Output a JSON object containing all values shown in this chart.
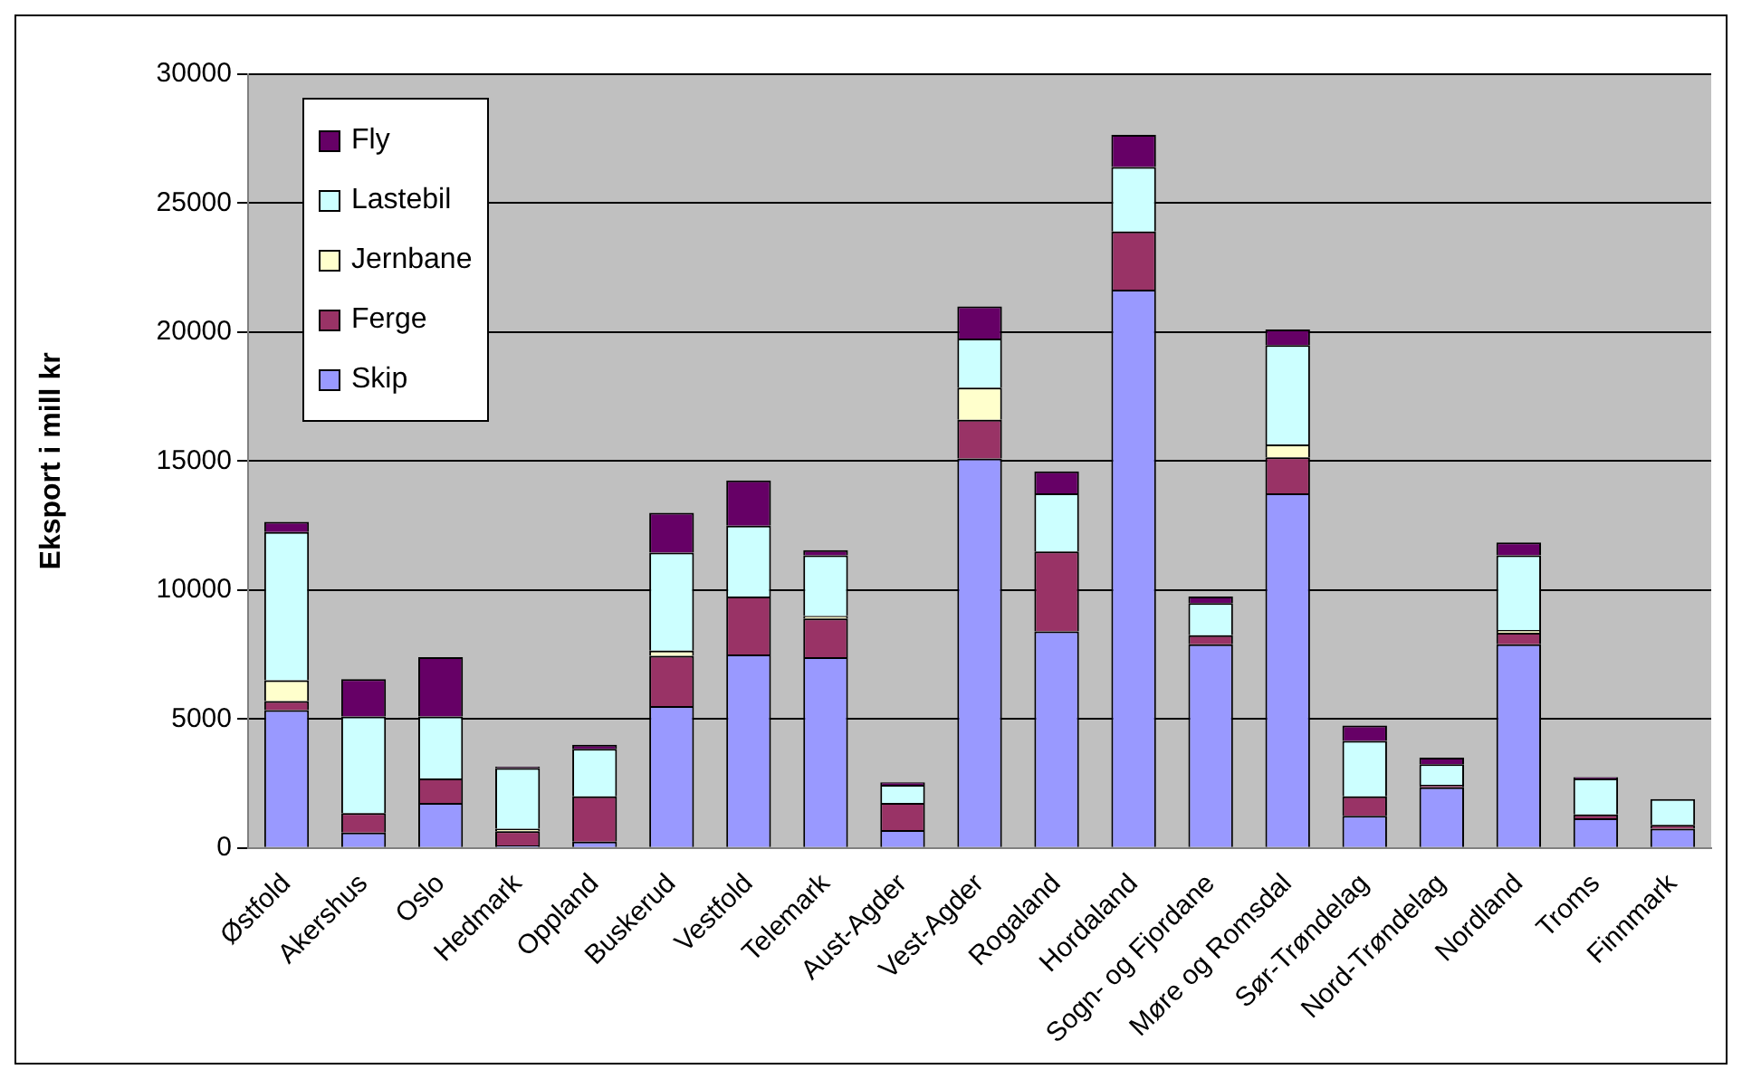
{
  "chart_data": {
    "type": "bar",
    "ylabel": "Eksport i mill kr",
    "stacked": true,
    "categories": [
      "Østfold",
      "Akershus",
      "Oslo",
      "Hedmark",
      "Oppland",
      "Buskerud",
      "Vestfold",
      "Telemark",
      "Aust-Agder",
      "Vest-Agder",
      "Rogaland",
      "Hordaland",
      "Sogn- og Fjordane",
      "Møre og Romsdal",
      "Sør-Trøndelag",
      "Nord-Trøndelag",
      "Nordland",
      "Troms",
      "Finnmark"
    ],
    "series": [
      {
        "name": "Skip",
        "color": "#9999ff",
        "values": [
          5350,
          600,
          1750,
          100,
          250,
          5500,
          7500,
          7400,
          700,
          15100,
          8400,
          21650,
          7900,
          13750,
          1250,
          2350,
          7900,
          1150,
          750
        ]
      },
      {
        "name": "Ferge",
        "color": "#993366",
        "values": [
          350,
          750,
          950,
          550,
          1750,
          1950,
          2250,
          1500,
          1050,
          1500,
          3100,
          2250,
          350,
          1400,
          750,
          100,
          450,
          150,
          150
        ]
      },
      {
        "name": "Jernbane",
        "color": "#ffffcc",
        "values": [
          800,
          0,
          0,
          100,
          null,
          200,
          0,
          100,
          null,
          1250,
          0,
          0,
          0,
          500,
          null,
          0,
          100,
          0,
          0
        ]
      },
      {
        "name": "Lastebil",
        "color": "#ccffff",
        "values": [
          5750,
          3750,
          2400,
          2350,
          1850,
          3800,
          2750,
          2350,
          700,
          1900,
          2250,
          2500,
          1250,
          3850,
          2150,
          800,
          2900,
          1400,
          1000
        ]
      },
      {
        "name": "Fly",
        "color": "#660066",
        "values": [
          400,
          1450,
          2300,
          50,
          150,
          1550,
          1750,
          200,
          100,
          1250,
          850,
          1250,
          250,
          600,
          600,
          250,
          500,
          50,
          0
        ]
      }
    ],
    "ylim": [
      0,
      30000
    ],
    "yticks": [
      0,
      5000,
      10000,
      15000,
      20000,
      25000,
      30000
    ],
    "grid": "y",
    "legend": "top left"
  }
}
